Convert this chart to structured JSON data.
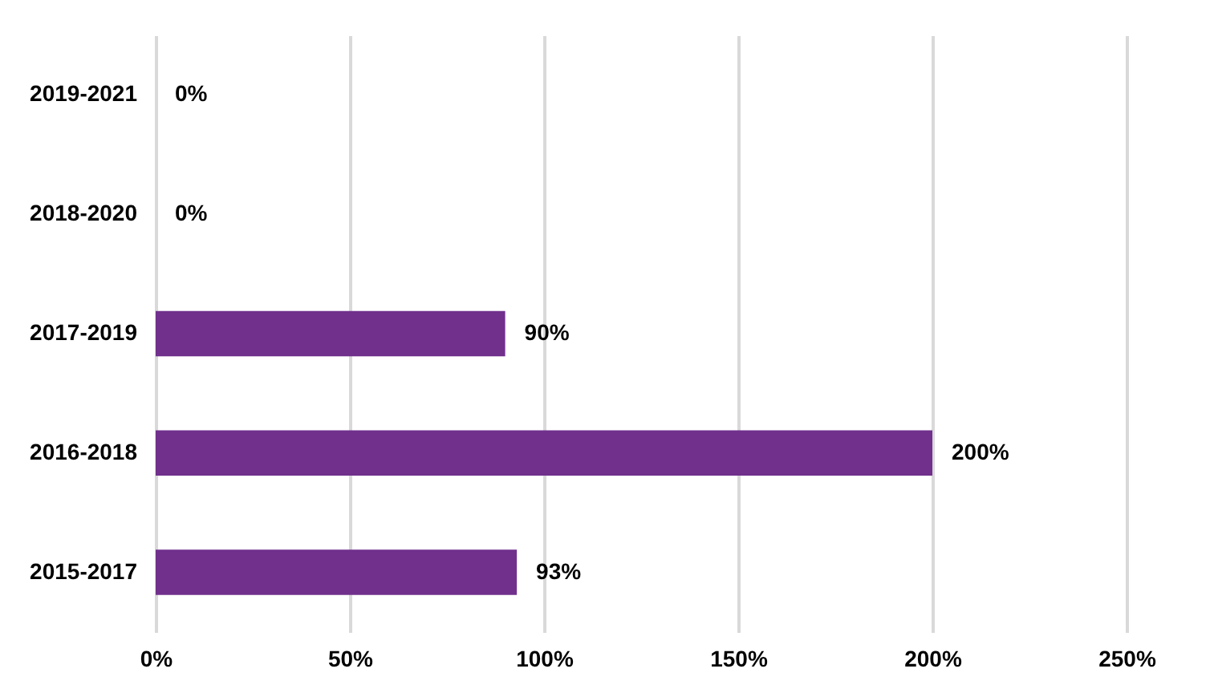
{
  "chart_data": {
    "type": "bar",
    "orientation": "horizontal",
    "categories": [
      "2019-2021",
      "2018-2020",
      "2017-2019",
      "2016-2018",
      "2015-2017"
    ],
    "values": [
      0,
      0,
      90,
      200,
      93
    ],
    "value_labels": [
      "0%",
      "0%",
      "90%",
      "200%",
      "93%"
    ],
    "color": "#70308c",
    "xlim": [
      0,
      250
    ],
    "xticks": [
      {
        "value": 0,
        "label": "0%"
      },
      {
        "value": 50,
        "label": "50%"
      },
      {
        "value": 100,
        "label": "100%"
      },
      {
        "value": 150,
        "label": "150%"
      },
      {
        "value": 200,
        "label": "200%"
      },
      {
        "value": 250,
        "label": "250%"
      }
    ],
    "grid": "x"
  }
}
